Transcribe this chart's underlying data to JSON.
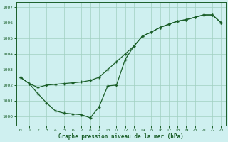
{
  "title": "Graphe pression niveau de la mer (hPa)",
  "bg_color": "#cff0f0",
  "grid_color": "#a0cfc0",
  "line_color": "#1a5e28",
  "xlim": [
    -0.5,
    23.5
  ],
  "ylim": [
    999.4,
    1007.3
  ],
  "xticks": [
    0,
    1,
    2,
    3,
    4,
    5,
    6,
    7,
    8,
    9,
    10,
    11,
    12,
    13,
    14,
    15,
    16,
    17,
    18,
    19,
    20,
    21,
    22,
    23
  ],
  "yticks": [
    1000,
    1001,
    1002,
    1003,
    1004,
    1005,
    1006,
    1007
  ],
  "line1_x": [
    0,
    1,
    2,
    3,
    4,
    5,
    6,
    7,
    8,
    9,
    10,
    11,
    12,
    13,
    14,
    15,
    16,
    17,
    18,
    19,
    20,
    21,
    22,
    23
  ],
  "line1_y": [
    1002.5,
    1002.1,
    1001.85,
    1002.0,
    1002.05,
    1002.1,
    1002.15,
    1002.2,
    1002.3,
    1002.5,
    1003.0,
    1003.5,
    1004.0,
    1004.5,
    1005.15,
    1005.4,
    1005.7,
    1005.9,
    1006.1,
    1006.2,
    1006.35,
    1006.5,
    1006.5,
    1006.0
  ],
  "line2_x": [
    0,
    1,
    2,
    3,
    4,
    5,
    6,
    7,
    8,
    9,
    10,
    11,
    12,
    13,
    14,
    15,
    16,
    17,
    18,
    19,
    20,
    21,
    22,
    23
  ],
  "line2_y": [
    1002.5,
    1002.1,
    1001.45,
    1000.85,
    1000.35,
    1000.2,
    1000.15,
    1000.1,
    999.9,
    1000.6,
    1001.95,
    1002.0,
    1003.65,
    1004.5,
    1005.15,
    1005.4,
    1005.7,
    1005.9,
    1006.1,
    1006.2,
    1006.35,
    1006.5,
    1006.5,
    1006.0
  ]
}
